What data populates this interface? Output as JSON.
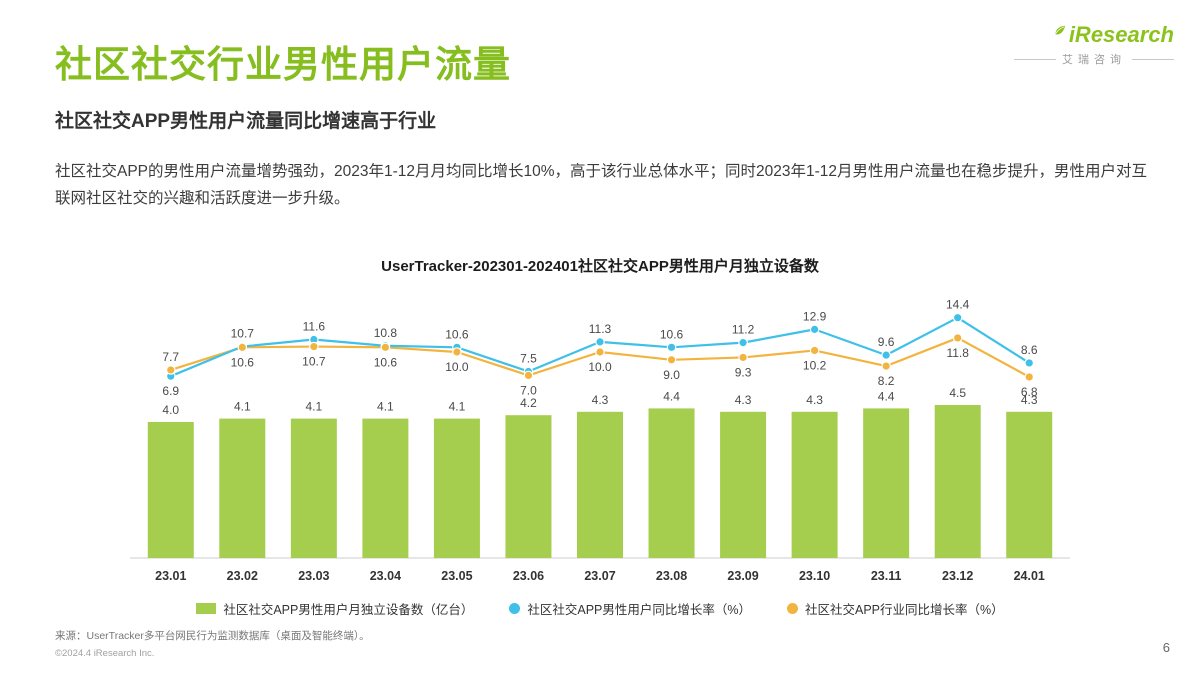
{
  "page": {
    "title": "社区社交行业男性用户流量",
    "subtitle": "社区社交APP男性用户流量同比增速高于行业",
    "paragraph": "社区社交APP的男性用户流量增势强劲，2023年1-12月月均同比增长10%，高于该行业总体水平；同时2023年1-12月男性用户流量也在稳步提升，男性用户对互联网社区社交的兴趣和活跃度进一步升级。",
    "page_number": "6"
  },
  "logo": {
    "brand": "iResearch",
    "brand_cn": "艾瑞咨询",
    "leaf_icon": "leaf-icon",
    "brand_color": "#8CC21C"
  },
  "chart_data": {
    "type": "bar+line",
    "title": "UserTracker-202301-202401社区社交APP男性用户月独立设备数",
    "categories": [
      "23.01",
      "23.02",
      "23.03",
      "23.04",
      "23.05",
      "23.06",
      "23.07",
      "23.08",
      "23.09",
      "23.10",
      "23.11",
      "23.12",
      "24.01"
    ],
    "bars": {
      "name": "社区社交APP男性用户月独立设备数（亿台）",
      "values": [
        4.0,
        4.1,
        4.1,
        4.1,
        4.1,
        4.2,
        4.3,
        4.4,
        4.3,
        4.3,
        4.4,
        4.5,
        4.3
      ],
      "color": "#A5CE4E"
    },
    "lines": [
      {
        "name": "社区社交APP男性用户同比增长率（%）",
        "values": [
          6.9,
          10.7,
          11.6,
          10.8,
          10.6,
          7.5,
          11.3,
          10.6,
          11.2,
          12.9,
          9.6,
          14.4,
          8.6
        ],
        "color": "#3EC0E8"
      },
      {
        "name": "社区社交APP行业同比增长率（%）",
        "values": [
          7.7,
          10.6,
          10.7,
          10.6,
          10.0,
          7.0,
          10.0,
          9.0,
          9.3,
          10.2,
          8.2,
          11.8,
          6.8
        ],
        "color": "#F2B43E"
      }
    ],
    "value_label_decimals": 1,
    "grid": false,
    "legend_position": "bottom"
  },
  "footer": {
    "source": "来源：UserTracker多平台网民行为监测数据库（桌面及智能终端）。",
    "copyright": "©2024.4 iResearch Inc."
  }
}
